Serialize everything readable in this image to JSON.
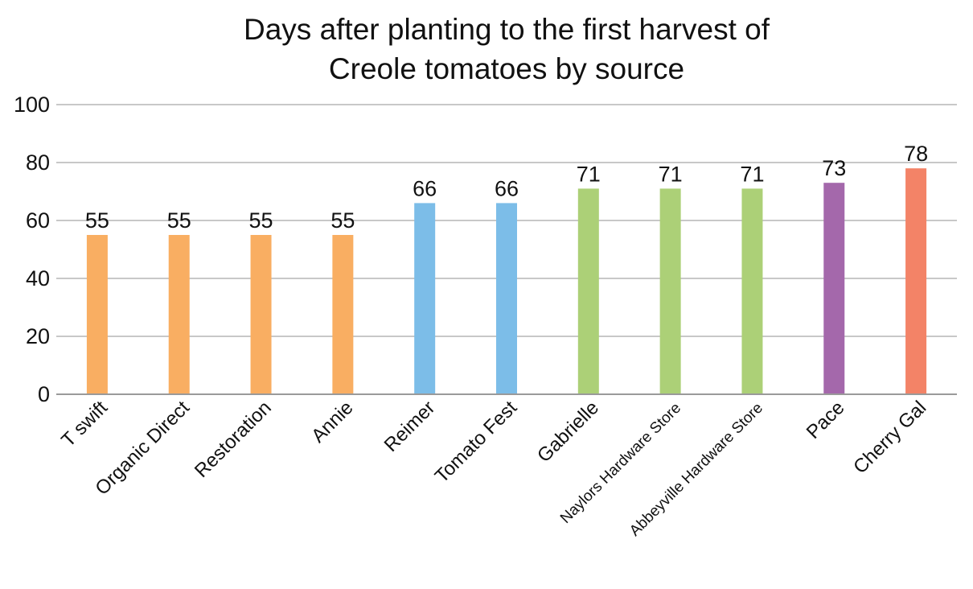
{
  "chart_data": {
    "type": "bar",
    "title": "Days after planting to the first harvest of Creole tomatoes by source",
    "title_lines": [
      "Days after planting to the first harvest of",
      "Creole tomatoes by source"
    ],
    "categories": [
      "T swift",
      "Organic Direct",
      "Restoration",
      "Annie",
      "Reimer",
      "Tomato Fest",
      "Gabrielle",
      "Naylors Hardware Store",
      "Abbeyville Hardware Store",
      "Pace",
      "Cherry Gal"
    ],
    "values": [
      55,
      55,
      55,
      55,
      66,
      66,
      71,
      71,
      71,
      73,
      78
    ],
    "bar_colors": [
      "#f9ae62",
      "#f9ae62",
      "#f9ae62",
      "#f9ae62",
      "#7cbde8",
      "#7cbde8",
      "#acd077",
      "#acd077",
      "#acd077",
      "#a468ab",
      "#f38367"
    ],
    "ylim": [
      0,
      100
    ],
    "yticks": [
      0,
      20,
      40,
      60,
      80,
      100
    ],
    "xlabel": "",
    "ylabel": "",
    "grid": true,
    "data_labels": true
  }
}
